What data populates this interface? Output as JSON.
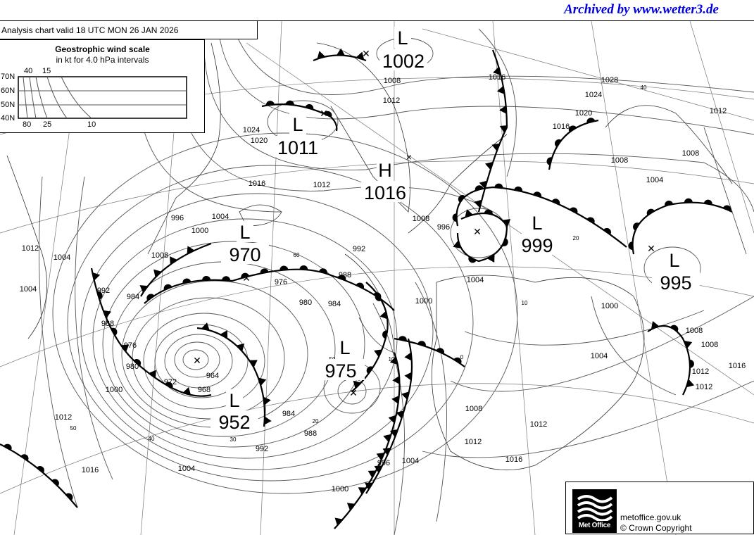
{
  "archive_label": "Archived by www.wetter3.de",
  "chart_title": "Analysis chart  valid 18 UTC MON 26  JAN 2026",
  "wind_scale": {
    "title": "Geostrophic wind scale",
    "subtitle": "in kt for 4.0 hPa intervals",
    "latitudes": [
      "70N",
      "60N",
      "50N",
      "40N"
    ],
    "top_labels": [
      "40",
      "15"
    ],
    "bottom_labels": [
      "80",
      "25",
      "10"
    ]
  },
  "pressure_centres": [
    {
      "type": "L",
      "value": "1002"
    },
    {
      "type": "L",
      "value": "1011"
    },
    {
      "type": "H",
      "value": "1016"
    },
    {
      "type": "L",
      "value": "970"
    },
    {
      "type": "L",
      "value": "999"
    },
    {
      "type": "L",
      "value": "995"
    },
    {
      "type": "L",
      "value": "975"
    },
    {
      "type": "L",
      "value": "952"
    }
  ],
  "isobar_labels": [
    "1008",
    "1012",
    "1028",
    "1024",
    "1020",
    "1016",
    "1024",
    "1020",
    "1016",
    "1012",
    "1008",
    "1004",
    "1000",
    "996",
    "1008",
    "1012",
    "1004",
    "1004",
    "992",
    "988",
    "984",
    "976",
    "980",
    "972",
    "968",
    "964",
    "980",
    "976",
    "984",
    "988",
    "992",
    "996",
    "1000",
    "1004",
    "1008",
    "1012",
    "1016",
    "1000",
    "1008",
    "1004",
    "1008",
    "1012",
    "1016",
    "1012",
    "1000",
    "1004",
    "1012",
    "1016",
    "1008",
    "1012",
    "1004",
    "984",
    "988",
    "992",
    "996",
    "1000",
    "1004",
    "1008",
    "1012",
    "1016",
    "10",
    "20",
    "30",
    "40",
    "50",
    "60",
    "20",
    "10",
    "40",
    "50",
    "0"
  ],
  "footer": {
    "logo_text": "Met Office",
    "site": "metoffice.gov.uk",
    "copyright": "© Crown Copyright"
  },
  "colors": {
    "archive_link": "#0000e0",
    "lines": "#555555",
    "fronts": "#000000"
  }
}
